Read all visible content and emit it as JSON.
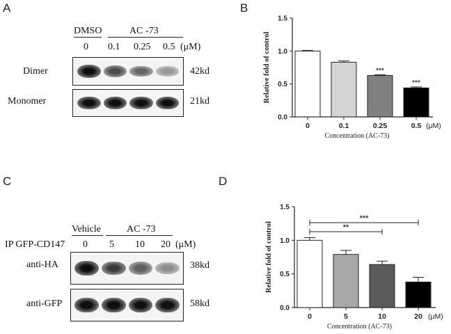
{
  "panels": {
    "A": {
      "label": "A",
      "group_left": "DMSO",
      "group_right": "AC -73",
      "concs": [
        "0",
        "0.1",
        "0.25",
        "0.5"
      ],
      "unit": "(μM)",
      "rows": [
        {
          "name": "Dimer",
          "size": "42kd",
          "intensity": [
            1.0,
            0.72,
            0.6,
            0.35
          ]
        },
        {
          "name": "Monomer",
          "size": "21kd",
          "intensity": [
            1.0,
            1.0,
            1.0,
            1.0
          ]
        }
      ]
    },
    "C": {
      "label": "C",
      "group_left": "Vehicle",
      "group_right": "AC -73",
      "row_prefix": "IP GFP-CD147",
      "concs": [
        "0",
        "5",
        "10",
        "20"
      ],
      "unit": "(μM)",
      "rows": [
        {
          "name": "anti-HA",
          "size": "38kd",
          "intensity": [
            1.0,
            0.8,
            0.62,
            0.4
          ]
        },
        {
          "name": "anti-GFP",
          "size": "58kd",
          "intensity": [
            1.0,
            1.0,
            1.0,
            1.0
          ]
        }
      ]
    },
    "B": {
      "label": "B"
    },
    "D": {
      "label": "D"
    }
  },
  "chart_data": [
    {
      "type": "bar",
      "panel": "B",
      "categories": [
        "0",
        "0.1",
        "0.25",
        "0.5"
      ],
      "values": [
        1.0,
        0.83,
        0.63,
        0.44
      ],
      "errors": [
        0.01,
        0.02,
        0.01,
        0.015
      ],
      "colors": [
        "#ffffff",
        "#d4d4d4",
        "#808080",
        "#000000"
      ],
      "ylabel": "Relative fold of control",
      "xlabel": "Concentration (AC-73)",
      "unit": "(μM)",
      "ylim": [
        0,
        1.5
      ],
      "yticks": [
        "0.0",
        "0.5",
        "1.0",
        "1.5"
      ],
      "significance": [
        "",
        "",
        "***",
        "***"
      ]
    },
    {
      "type": "bar",
      "panel": "D",
      "categories": [
        "0",
        "5",
        "10",
        "20"
      ],
      "values": [
        1.0,
        0.79,
        0.64,
        0.38
      ],
      "errors": [
        0.04,
        0.06,
        0.05,
        0.07
      ],
      "colors": [
        "#ffffff",
        "#a8a8a8",
        "#5a5a5a",
        "#000000"
      ],
      "ylabel": "Relative fold of control",
      "xlabel": "Concentration (AC-73)",
      "unit": "(μM)",
      "ylim": [
        0,
        1.5
      ],
      "yticks": [
        "0.0",
        "0.5",
        "1.0",
        "1.5"
      ],
      "brackets": [
        {
          "from": "0",
          "to": "10",
          "label": "**"
        },
        {
          "from": "0",
          "to": "20",
          "label": "***"
        }
      ]
    }
  ]
}
